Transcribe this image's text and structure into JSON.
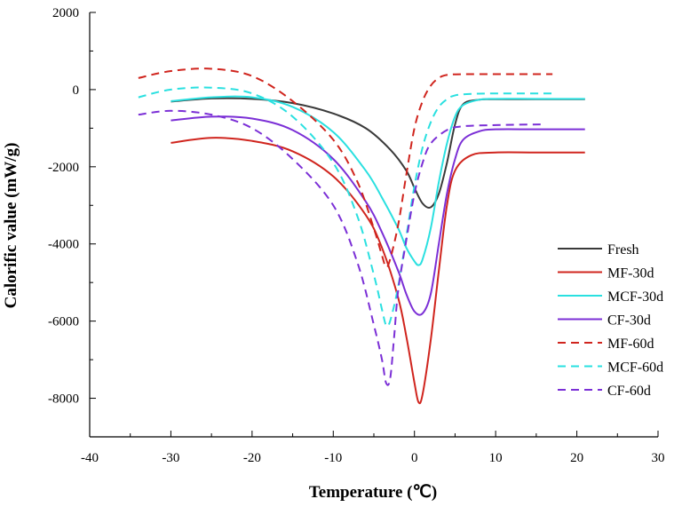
{
  "chart_data": {
    "type": "line",
    "title": "",
    "xlabel": "Temperature (℃)",
    "ylabel": "Calorific value (mW/g)",
    "xlim": [
      -40,
      30
    ],
    "ylim": [
      -9000,
      2000
    ],
    "x_ticks": [
      -40,
      -30,
      -20,
      -10,
      0,
      10,
      20,
      30
    ],
    "y_ticks": [
      2000,
      0,
      -2000,
      -4000,
      -6000,
      -8000
    ],
    "legend_position": "right",
    "grid": false,
    "series": [
      {
        "name": "Fresh",
        "color": "#3a3a3a",
        "dash": "solid",
        "x": [
          -30,
          -25,
          -20,
          -15,
          -10,
          -6,
          -3,
          -1,
          0,
          1,
          2,
          3,
          4,
          5,
          6,
          8,
          10,
          15,
          21
        ],
        "y": [
          -310,
          -230,
          -240,
          -350,
          -620,
          -1000,
          -1550,
          -2100,
          -2550,
          -2950,
          -3050,
          -2700,
          -1900,
          -900,
          -380,
          -260,
          -250,
          -250,
          -250
        ]
      },
      {
        "name": "MF-30d",
        "color": "#d0251e",
        "dash": "solid",
        "x": [
          -30,
          -25,
          -20,
          -15,
          -10,
          -6,
          -4,
          -2,
          -1,
          0,
          0.5,
          1,
          2,
          3,
          4,
          5,
          7,
          10,
          15,
          21
        ],
        "y": [
          -1380,
          -1250,
          -1330,
          -1600,
          -2250,
          -3250,
          -4100,
          -5400,
          -6400,
          -7600,
          -8100,
          -7900,
          -6500,
          -4700,
          -3000,
          -2100,
          -1700,
          -1630,
          -1630,
          -1630
        ]
      },
      {
        "name": "MCF-30d",
        "color": "#2ae0e0",
        "dash": "solid",
        "x": [
          -30,
          -25,
          -20,
          -15,
          -10,
          -6,
          -4,
          -2,
          -1,
          0,
          0.5,
          1,
          2,
          3,
          4,
          5,
          6,
          8,
          10,
          15,
          21
        ],
        "y": [
          -300,
          -200,
          -200,
          -450,
          -1100,
          -2100,
          -2800,
          -3600,
          -4100,
          -4450,
          -4550,
          -4400,
          -3600,
          -2400,
          -1400,
          -700,
          -400,
          -260,
          -240,
          -240,
          -240
        ]
      },
      {
        "name": "CF-30d",
        "color": "#7b2fd6",
        "dash": "solid",
        "x": [
          -30,
          -25,
          -20,
          -15,
          -10,
          -6,
          -4,
          -2,
          -1,
          0,
          1,
          2,
          3,
          4,
          5,
          6,
          8,
          10,
          15,
          21
        ],
        "y": [
          -800,
          -700,
          -750,
          -1050,
          -1800,
          -2900,
          -3700,
          -4700,
          -5300,
          -5750,
          -5800,
          -5300,
          -4000,
          -2700,
          -1800,
          -1300,
          -1080,
          -1030,
          -1030,
          -1030
        ]
      },
      {
        "name": "MF-60d",
        "color": "#d0251e",
        "dash": "dashed",
        "x": [
          -34,
          -30,
          -25,
          -20,
          -15,
          -10,
          -7,
          -5,
          -4,
          -3.5,
          -3,
          -2,
          -1,
          0,
          1,
          2,
          3,
          4,
          6,
          10,
          17
        ],
        "y": [
          300,
          480,
          540,
          350,
          -300,
          -1300,
          -2400,
          -3600,
          -4300,
          -4600,
          -4400,
          -3500,
          -2200,
          -1000,
          -300,
          100,
          300,
          380,
          400,
          400,
          400
        ]
      },
      {
        "name": "MCF-60d",
        "color": "#2ae0e0",
        "dash": "dashed",
        "x": [
          -34,
          -30,
          -25,
          -20,
          -15,
          -10,
          -7,
          -5,
          -4,
          -3.5,
          -3,
          -2,
          -1,
          0,
          1,
          2,
          3,
          4,
          5,
          7,
          10,
          17
        ],
        "y": [
          -200,
          0,
          50,
          -100,
          -700,
          -1900,
          -3300,
          -4800,
          -5700,
          -6100,
          -6000,
          -5100,
          -3800,
          -2500,
          -1500,
          -850,
          -450,
          -250,
          -150,
          -110,
          -100,
          -100
        ]
      },
      {
        "name": "CF-60d",
        "color": "#7b2fd6",
        "dash": "dashed",
        "x": [
          -34,
          -30,
          -25,
          -20,
          -15,
          -10,
          -7,
          -5,
          -4,
          -3.5,
          -3,
          -2.5,
          -2,
          -1,
          0,
          1,
          2,
          4,
          6,
          10,
          16
        ],
        "y": [
          -650,
          -550,
          -650,
          -1000,
          -1800,
          -3000,
          -4500,
          -6100,
          -7000,
          -7600,
          -7500,
          -6400,
          -5200,
          -3900,
          -2700,
          -1900,
          -1400,
          -1050,
          -950,
          -920,
          -900
        ]
      }
    ]
  }
}
